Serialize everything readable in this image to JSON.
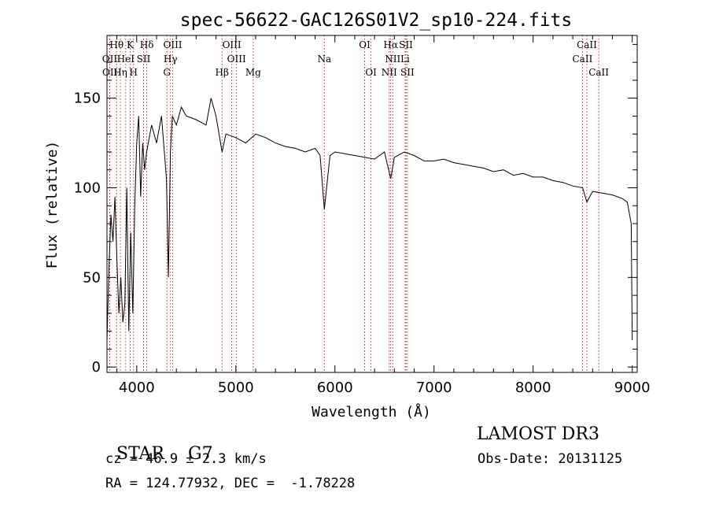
{
  "chart_data": {
    "type": "line",
    "title": "spec-56622-GAC126S01V2_sp10-224.fits",
    "xlabel": "Wavelength (Å)",
    "ylabel": "Flux (relative)",
    "xlim": [
      3700,
      9050
    ],
    "ylim": [
      -3,
      185
    ],
    "xticks": [
      4000,
      5000,
      6000,
      7000,
      8000,
      9000
    ],
    "yticks": [
      0,
      50,
      100,
      150
    ],
    "series": [
      {
        "name": "flux",
        "x": [
          3700,
          3720,
          3740,
          3760,
          3780,
          3800,
          3820,
          3840,
          3860,
          3880,
          3900,
          3920,
          3940,
          3960,
          3980,
          4000,
          4020,
          4040,
          4060,
          4080,
          4100,
          4150,
          4200,
          4250,
          4300,
          4320,
          4340,
          4360,
          4400,
          4450,
          4500,
          4600,
          4700,
          4750,
          4800,
          4861,
          4900,
          5000,
          5100,
          5200,
          5300,
          5400,
          5500,
          5600,
          5700,
          5800,
          5850,
          5893,
          5950,
          6000,
          6100,
          6200,
          6300,
          6400,
          6500,
          6563,
          6600,
          6700,
          6800,
          6900,
          7000,
          7100,
          7200,
          7300,
          7400,
          7500,
          7600,
          7700,
          7800,
          7900,
          8000,
          8100,
          8200,
          8300,
          8400,
          8500,
          8542,
          8600,
          8700,
          8800,
          8900,
          8950,
          8990,
          9000
        ],
        "values": [
          15,
          55,
          85,
          70,
          95,
          60,
          30,
          50,
          25,
          35,
          100,
          20,
          75,
          30,
          90,
          125,
          140,
          95,
          125,
          110,
          120,
          135,
          125,
          140,
          105,
          50,
          120,
          140,
          135,
          145,
          140,
          138,
          135,
          150,
          140,
          120,
          130,
          128,
          125,
          130,
          128,
          125,
          123,
          122,
          120,
          122,
          118,
          88,
          118,
          120,
          119,
          118,
          117,
          116,
          120,
          105,
          117,
          120,
          118,
          115,
          115,
          116,
          114,
          113,
          112,
          111,
          109,
          110,
          107,
          108,
          106,
          106,
          104,
          103,
          101,
          100,
          92,
          98,
          97,
          96,
          94,
          92,
          80,
          15
        ]
      }
    ],
    "lines": [
      {
        "label": "Hθ",
        "wl": 3797,
        "row": 0
      },
      {
        "label": "K",
        "wl": 3934,
        "row": 0
      },
      {
        "label": "Hδ",
        "wl": 4102,
        "row": 0
      },
      {
        "label": "OIII",
        "wl": 4363,
        "row": 0
      },
      {
        "label": "OIII",
        "wl": 4959,
        "row": 0
      },
      {
        "label": "OI",
        "wl": 6300,
        "row": 0
      },
      {
        "label": "Hα",
        "wl": 6563,
        "row": 0
      },
      {
        "label": "SII",
        "wl": 6717,
        "row": 0
      },
      {
        "label": "CaII",
        "wl": 8542,
        "row": 0
      },
      {
        "label": "OII",
        "wl": 3727,
        "row": 1
      },
      {
        "label": "HeI",
        "wl": 3889,
        "row": 1
      },
      {
        "label": "SII",
        "wl": 4069,
        "row": 1
      },
      {
        "label": "Hγ",
        "wl": 4341,
        "row": 1
      },
      {
        "label": "OIII",
        "wl": 5007,
        "row": 1
      },
      {
        "label": "Na",
        "wl": 5893,
        "row": 1
      },
      {
        "label": "NII",
        "wl": 6583,
        "row": 1
      },
      {
        "label": "Li",
        "wl": 6708,
        "row": 1
      },
      {
        "label": "CaII",
        "wl": 8498,
        "row": 1
      },
      {
        "label": "OII",
        "wl": 3729,
        "row": 2
      },
      {
        "label": "Hη",
        "wl": 3835,
        "row": 2
      },
      {
        "label": "H",
        "wl": 3968,
        "row": 2
      },
      {
        "label": "G",
        "wl": 4305,
        "row": 2
      },
      {
        "label": "Hβ",
        "wl": 4861,
        "row": 2
      },
      {
        "label": "Mg",
        "wl": 5175,
        "row": 2
      },
      {
        "label": "OI",
        "wl": 6364,
        "row": 2
      },
      {
        "label": "NII",
        "wl": 6548,
        "row": 2
      },
      {
        "label": "SII",
        "wl": 6731,
        "row": 2
      },
      {
        "label": "CaII",
        "wl": 8662,
        "row": 2
      }
    ]
  },
  "info": {
    "class": "STAR",
    "subclass": "G7",
    "survey": "LAMOST DR3",
    "cz": "cz = 46.9 ± 2.3 km/s",
    "obs_date": "Obs-Date: 20131125",
    "coords": "RA = 124.77932, DEC =  -1.78228"
  }
}
